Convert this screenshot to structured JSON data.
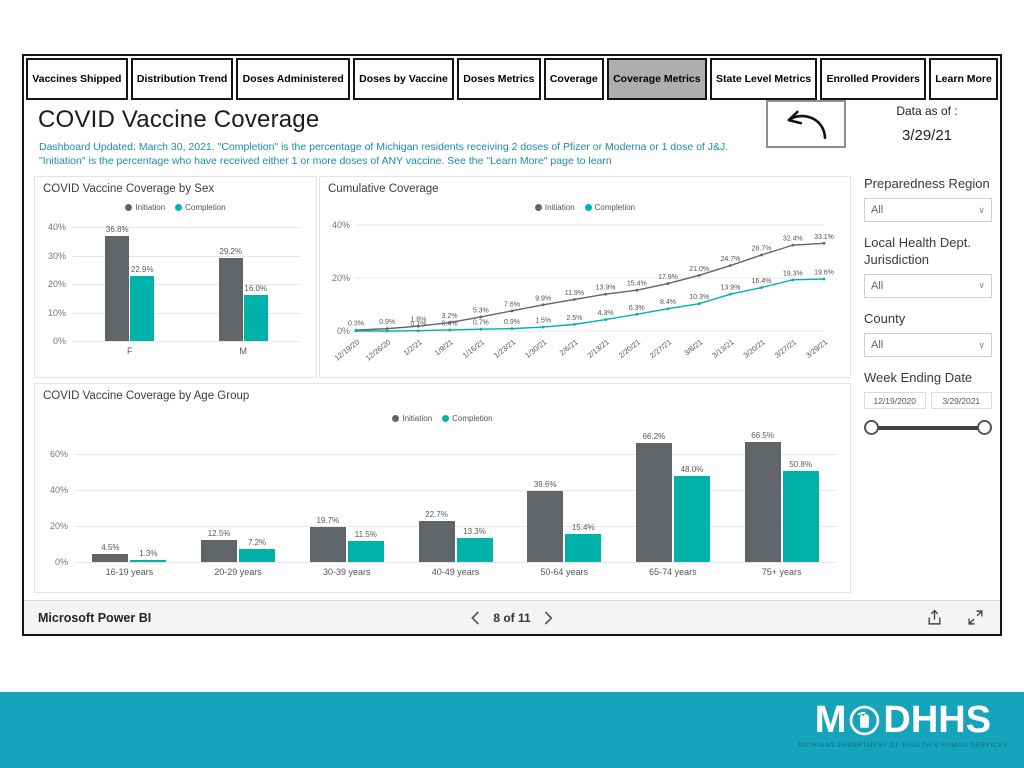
{
  "colors": {
    "initiation": "#5f6568",
    "completion": "#00b2a9",
    "band_teal": "#16a3bc",
    "subtitle_teal": "#1b8cab",
    "tab_selected_bg": "#aeaeae"
  },
  "tabs": {
    "items": [
      {
        "label": "Vaccines Shipped",
        "selected": false
      },
      {
        "label": "Distribution Trend",
        "selected": false
      },
      {
        "label": "Doses Administered",
        "selected": false
      },
      {
        "label": "Doses by Vaccine",
        "selected": false
      },
      {
        "label": "Doses Metrics",
        "selected": false
      },
      {
        "label": "Coverage",
        "selected": false
      },
      {
        "label": "Coverage Metrics",
        "selected": true
      },
      {
        "label": "State Level Metrics",
        "selected": false
      },
      {
        "label": "Enrolled Providers",
        "selected": false
      },
      {
        "label": "Learn More",
        "selected": false
      }
    ]
  },
  "header": {
    "title": "COVID Vaccine Coverage",
    "subtitle": "Dashboard Updated: March 30, 2021. \"Completion\" is the percentage of Michigan residents receiving 2 doses of Pfizer or Moderna or 1 dose of J&J. \"Initiation\" is the percentage who have received either 1 or more doses of ANY vaccine. See the \"Learn More\" page to learn",
    "data_as_of_label": "Data as of :",
    "data_as_of_value": "3/29/21"
  },
  "sidebar": {
    "filters": [
      {
        "label": "Preparedness Region",
        "value": "All"
      },
      {
        "label": "Local Health Dept. Jurisdiction",
        "value": "All"
      },
      {
        "label": "County",
        "value": "All"
      }
    ],
    "week_slider": {
      "label": "Week Ending Date",
      "start": "12/19/2020",
      "end": "3/29/2021"
    }
  },
  "legend": {
    "series": [
      "Initiation",
      "Completion"
    ]
  },
  "chart_data": [
    {
      "id": "sex",
      "type": "bar",
      "title": "COVID Vaccine Coverage by Sex",
      "categories": [
        "F",
        "M"
      ],
      "series": [
        {
          "name": "Initiation",
          "values": [
            36.8,
            29.2
          ]
        },
        {
          "name": "Completion",
          "values": [
            22.9,
            16.0
          ]
        }
      ],
      "ylim": 40,
      "y_ticks": [
        0,
        10,
        20,
        30,
        40
      ],
      "legend_position": "top-center",
      "grid": true
    },
    {
      "id": "cumulative",
      "type": "line",
      "title": "Cumulative Coverage",
      "x": [
        "12/19/20",
        "12/26/20",
        "1/2/21",
        "1/9/21",
        "1/16/21",
        "1/23/21",
        "1/30/21",
        "2/6/21",
        "2/13/21",
        "2/20/21",
        "2/27/21",
        "3/6/21",
        "3/13/21",
        "3/20/21",
        "3/27/21",
        "3/29/21"
      ],
      "series": [
        {
          "name": "Initiation",
          "values": [
            0.3,
            0.9,
            1.8,
            3.2,
            5.3,
            7.6,
            9.9,
            11.9,
            13.9,
            15.4,
            17.9,
            21.0,
            24.7,
            28.7,
            32.4,
            33.1
          ]
        },
        {
          "name": "Completion",
          "values": [
            0.0,
            0.0,
            0.1,
            0.4,
            0.7,
            0.9,
            1.5,
            2.5,
            4.3,
            6.3,
            8.4,
            10.3,
            13.9,
            16.4,
            19.3,
            19.6
          ]
        }
      ],
      "ylim": 40,
      "y_ticks": [
        0,
        20,
        40
      ],
      "legend_position": "top-center",
      "grid": true
    },
    {
      "id": "age",
      "type": "bar",
      "title": "COVID Vaccine Coverage by Age Group",
      "categories": [
        "16-19 years",
        "20-29 years",
        "30-39 years",
        "40-49 years",
        "50-64 years",
        "65-74 years",
        "75+ years"
      ],
      "series": [
        {
          "name": "Initiation",
          "values": [
            4.5,
            12.5,
            19.7,
            22.7,
            39.6,
            66.2,
            66.5
          ]
        },
        {
          "name": "Completion",
          "values": [
            1.3,
            7.2,
            11.5,
            13.3,
            15.4,
            48.0,
            50.8
          ]
        }
      ],
      "ylim": 70,
      "y_ticks": [
        0,
        20,
        40,
        60
      ],
      "legend_position": "top-center",
      "grid": true
    }
  ],
  "footer": {
    "brand": "Microsoft Power BI",
    "page": "8 of 11"
  },
  "brand_band": {
    "logo_left": "M",
    "logo_right": "DHHS",
    "tagline": "Michigan Department of Health & Human Services"
  }
}
